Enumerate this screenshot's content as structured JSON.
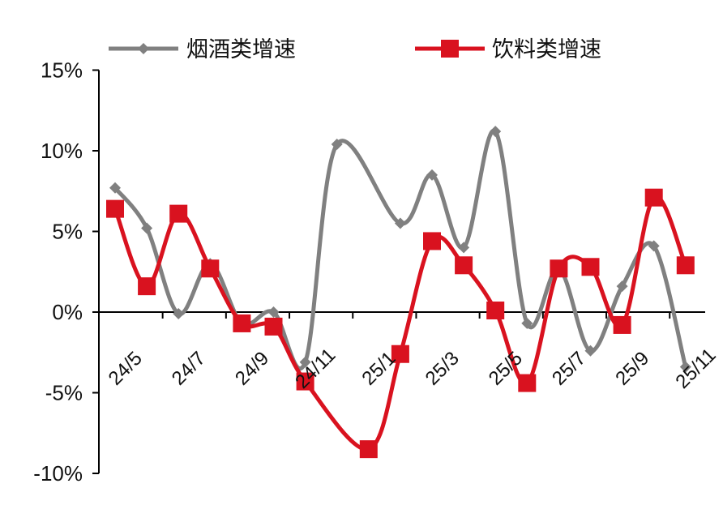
{
  "chart_data": {
    "type": "line",
    "title": "",
    "xlabel": "",
    "ylabel": "",
    "ylim": [
      -10,
      15
    ],
    "ytick_labels": [
      "15%",
      "10%",
      "5%",
      "0%",
      "-5%",
      "-10%"
    ],
    "ytick_values": [
      15,
      10,
      5,
      0,
      -5,
      -10
    ],
    "x_tick_labels": [
      "24/5",
      "24/7",
      "24/9",
      "24/11",
      "25/1",
      "25/3",
      "25/5",
      "25/7",
      "25/9",
      "25/11"
    ],
    "x_tick_indices": [
      0,
      2,
      4,
      6,
      8,
      10,
      12,
      14,
      16,
      18
    ],
    "x": [
      "24/5",
      "24/6",
      "24/7",
      "24/8",
      "24/9",
      "24/10",
      "24/11",
      "24/12",
      "25/1",
      "25/2",
      "25/3",
      "25/4",
      "25/5",
      "25/6",
      "25/7",
      "25/8",
      "25/9",
      "25/10",
      "25/11"
    ],
    "legend_position": "top",
    "series": [
      {
        "name": "烟酒类增速",
        "color": "#808080",
        "marker": "diamond",
        "values": [
          7.7,
          5.2,
          -0.1,
          3.0,
          -0.7,
          0.0,
          -3.1,
          10.4,
          null,
          5.5,
          8.5,
          4.0,
          11.2,
          -0.7,
          2.7,
          -2.4,
          1.6,
          4.1,
          -3.4
        ]
      },
      {
        "name": "饮料类增速",
        "color": "#d9121f",
        "marker": "square",
        "values": [
          6.4,
          1.6,
          6.1,
          2.7,
          -0.7,
          -0.9,
          -4.3,
          null,
          -8.5,
          -2.6,
          4.4,
          2.9,
          0.1,
          -4.4,
          2.7,
          2.8,
          -0.8,
          7.1,
          2.9
        ]
      }
    ]
  }
}
